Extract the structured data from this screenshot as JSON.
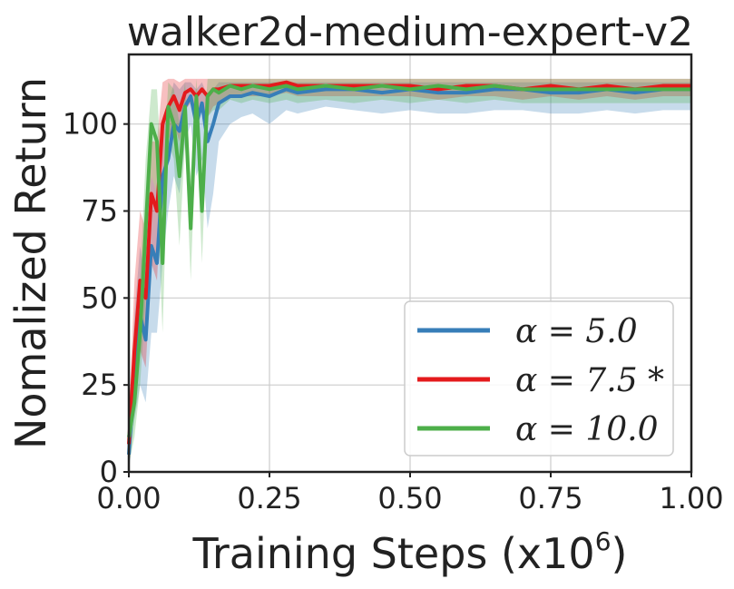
{
  "chart_data": {
    "type": "line",
    "title": "walker2d-medium-expert-v2",
    "xlabel": "Training Steps (x10",
    "xlabel_sup": "6",
    "xlabel_close": ")",
    "ylabel": "Nomalized Return",
    "xlim": [
      0,
      1.0
    ],
    "ylim": [
      0,
      120
    ],
    "grid": true,
    "legend_position": "lower-right",
    "x_ticks": [
      {
        "value": 0.0,
        "label": "0.00"
      },
      {
        "value": 0.25,
        "label": "0.25"
      },
      {
        "value": 0.5,
        "label": "0.50"
      },
      {
        "value": 0.75,
        "label": "0.75"
      },
      {
        "value": 1.0,
        "label": "1.00"
      }
    ],
    "y_ticks": [
      {
        "value": 0,
        "label": "0"
      },
      {
        "value": 25,
        "label": "25"
      },
      {
        "value": 50,
        "label": "50"
      },
      {
        "value": 75,
        "label": "75"
      },
      {
        "value": 100,
        "label": "100"
      }
    ],
    "x": [
      0.0,
      0.01,
      0.02,
      0.03,
      0.04,
      0.05,
      0.06,
      0.07,
      0.08,
      0.09,
      0.1,
      0.11,
      0.12,
      0.13,
      0.14,
      0.15,
      0.16,
      0.18,
      0.2,
      0.22,
      0.25,
      0.28,
      0.3,
      0.35,
      0.4,
      0.45,
      0.5,
      0.55,
      0.6,
      0.65,
      0.7,
      0.75,
      0.8,
      0.85,
      0.9,
      0.95,
      1.0
    ],
    "series": [
      {
        "name": "α = 5.0",
        "color": "#377eb8",
        "values": [
          5,
          30,
          45,
          38,
          65,
          60,
          85,
          90,
          100,
          98,
          105,
          108,
          100,
          106,
          95,
          100,
          106,
          108,
          108,
          109,
          108,
          110,
          109,
          110,
          110,
          109,
          110,
          109,
          109,
          110,
          110,
          109,
          109,
          110,
          109,
          110,
          110
        ],
        "lower": [
          0,
          15,
          25,
          20,
          40,
          40,
          60,
          75,
          85,
          80,
          95,
          100,
          85,
          90,
          70,
          80,
          95,
          100,
          102,
          103,
          100,
          104,
          103,
          105,
          104,
          103,
          104,
          103,
          103,
          104,
          104,
          103,
          103,
          104,
          103,
          104,
          104
        ],
        "upper": [
          10,
          45,
          65,
          55,
          85,
          80,
          100,
          105,
          112,
          110,
          112,
          112,
          110,
          112,
          108,
          110,
          112,
          112,
          112,
          112,
          112,
          112,
          112,
          112,
          112,
          112,
          112,
          112,
          112,
          112,
          112,
          112,
          112,
          112,
          112,
          112,
          112
        ]
      },
      {
        "name": "α = 7.5 *",
        "color": "#e41a1c",
        "values": [
          8,
          35,
          55,
          50,
          80,
          75,
          100,
          105,
          108,
          104,
          109,
          110,
          108,
          110,
          108,
          110,
          110,
          111,
          111,
          111,
          111,
          112,
          111,
          111,
          111,
          111,
          111,
          110,
          111,
          111,
          110,
          111,
          110,
          111,
          110,
          111,
          111
        ],
        "lower": [
          0,
          20,
          35,
          30,
          60,
          55,
          85,
          95,
          100,
          95,
          104,
          106,
          102,
          105,
          102,
          105,
          106,
          108,
          108,
          108,
          108,
          109,
          108,
          108,
          108,
          108,
          108,
          107,
          108,
          108,
          107,
          108,
          107,
          108,
          107,
          108,
          108
        ],
        "upper": [
          15,
          55,
          75,
          70,
          95,
          95,
          112,
          113,
          113,
          112,
          113,
          113,
          113,
          113,
          113,
          113,
          113,
          113,
          113,
          113,
          113,
          113,
          113,
          113,
          113,
          113,
          113,
          113,
          113,
          113,
          113,
          113,
          113,
          113,
          113,
          113,
          113
        ]
      },
      {
        "name": "α = 10.0",
        "color": "#4daf4a",
        "values": [
          10,
          20,
          40,
          70,
          100,
          95,
          60,
          105,
          100,
          85,
          105,
          70,
          108,
          75,
          108,
          110,
          109,
          111,
          110,
          111,
          110,
          111,
          110,
          111,
          110,
          111,
          110,
          111,
          110,
          111,
          110,
          110,
          110,
          110,
          110,
          110,
          110
        ],
        "lower": [
          2,
          10,
          25,
          50,
          85,
          80,
          40,
          95,
          90,
          65,
          95,
          55,
          100,
          60,
          102,
          104,
          104,
          107,
          106,
          107,
          106,
          107,
          106,
          107,
          106,
          107,
          106,
          107,
          106,
          107,
          106,
          106,
          106,
          106,
          106,
          106,
          106
        ],
        "upper": [
          20,
          35,
          55,
          90,
          110,
          110,
          80,
          112,
          110,
          100,
          112,
          85,
          113,
          90,
          113,
          113,
          113,
          113,
          113,
          113,
          113,
          113,
          113,
          113,
          113,
          113,
          113,
          113,
          113,
          113,
          113,
          113,
          113,
          113,
          113,
          113,
          113
        ]
      }
    ]
  }
}
